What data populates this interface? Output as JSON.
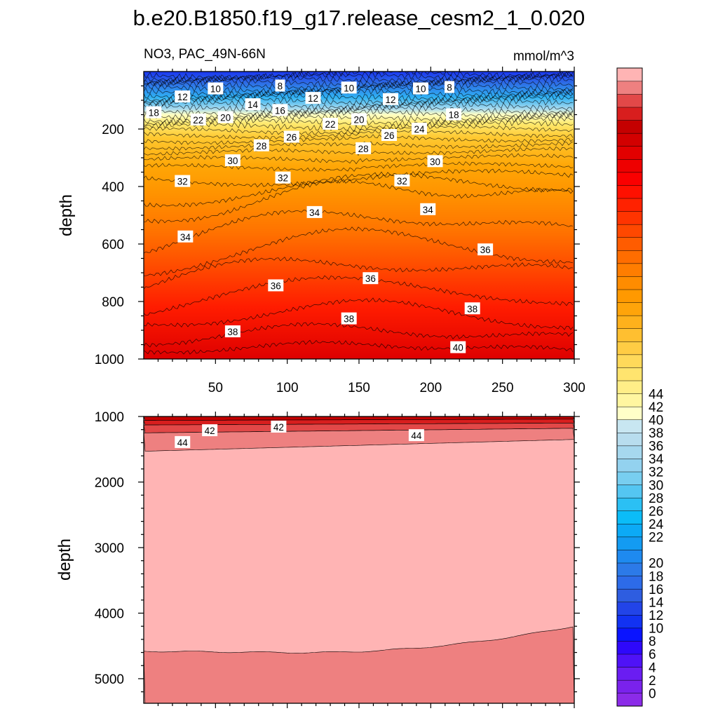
{
  "figure": {
    "title": "b.e20.B1850.f19_g17.release_cesm2_1_0.020",
    "left_subtitle": "NO3, PAC_49N-66N",
    "right_subtitle": "mmol/m^3"
  },
  "chart_data": [
    {
      "type": "contour",
      "panel": "upper",
      "x_ticks": [
        50,
        100,
        150,
        200,
        250,
        300
      ],
      "xlim": [
        0,
        300
      ],
      "ylabel": "depth",
      "y_ticks": [
        200,
        400,
        600,
        800,
        1000
      ],
      "ylim": [
        0,
        1000
      ],
      "y_reversed": true,
      "contour_interval": 2,
      "contour_labels": [
        {
          "x": 27,
          "y": 88,
          "v": "12"
        },
        {
          "x": 50,
          "y": 60,
          "v": "10"
        },
        {
          "x": 95,
          "y": 50,
          "v": "8"
        },
        {
          "x": 118,
          "y": 93,
          "v": "12"
        },
        {
          "x": 143,
          "y": 57,
          "v": "10"
        },
        {
          "x": 172,
          "y": 97,
          "v": "12"
        },
        {
          "x": 193,
          "y": 60,
          "v": "10"
        },
        {
          "x": 213,
          "y": 55,
          "v": "8"
        },
        {
          "x": 7,
          "y": 143,
          "v": "18"
        },
        {
          "x": 38,
          "y": 168,
          "v": "22"
        },
        {
          "x": 57,
          "y": 160,
          "v": "20"
        },
        {
          "x": 76,
          "y": 115,
          "v": "14"
        },
        {
          "x": 95,
          "y": 135,
          "v": "16"
        },
        {
          "x": 130,
          "y": 183,
          "v": "22"
        },
        {
          "x": 150,
          "y": 167,
          "v": "20"
        },
        {
          "x": 216,
          "y": 150,
          "v": "18"
        },
        {
          "x": 192,
          "y": 200,
          "v": "24"
        },
        {
          "x": 171,
          "y": 222,
          "v": "26"
        },
        {
          "x": 103,
          "y": 228,
          "v": "26"
        },
        {
          "x": 82,
          "y": 258,
          "v": "28"
        },
        {
          "x": 153,
          "y": 268,
          "v": "28"
        },
        {
          "x": 62,
          "y": 310,
          "v": "30"
        },
        {
          "x": 203,
          "y": 313,
          "v": "30"
        },
        {
          "x": 27,
          "y": 382,
          "v": "32"
        },
        {
          "x": 97,
          "y": 370,
          "v": "32"
        },
        {
          "x": 180,
          "y": 380,
          "v": "32"
        },
        {
          "x": 119,
          "y": 490,
          "v": "34"
        },
        {
          "x": 198,
          "y": 480,
          "v": "34"
        },
        {
          "x": 29,
          "y": 575,
          "v": "34"
        },
        {
          "x": 238,
          "y": 620,
          "v": "36"
        },
        {
          "x": 92,
          "y": 745,
          "v": "36"
        },
        {
          "x": 158,
          "y": 720,
          "v": "36"
        },
        {
          "x": 229,
          "y": 825,
          "v": "38"
        },
        {
          "x": 143,
          "y": 860,
          "v": "38"
        },
        {
          "x": 62,
          "y": 905,
          "v": "38"
        },
        {
          "x": 219,
          "y": 960,
          "v": "40"
        }
      ]
    },
    {
      "type": "contour",
      "panel": "lower",
      "ylabel": "depth",
      "y_ticks": [
        1000,
        2000,
        3000,
        4000,
        5000
      ],
      "ylim": [
        1000,
        5375
      ],
      "y_reversed": true,
      "contour_labels": [
        {
          "x": 27,
          "y": 1395,
          "v": "44"
        },
        {
          "x": 46,
          "y": 1215,
          "v": "42"
        },
        {
          "x": 94,
          "y": 1160,
          "v": "42"
        },
        {
          "x": 190,
          "y": 1290,
          "v": "44"
        }
      ]
    }
  ],
  "colorbar": {
    "labels": [
      "0",
      "2",
      "4",
      "6",
      "8",
      "10",
      "12",
      "14",
      "16",
      "18",
      "20",
      "22",
      "24",
      "26",
      "28",
      "30",
      "32",
      "34",
      "36",
      "38",
      "40",
      "42",
      "44"
    ],
    "colors": [
      "#8b2be8",
      "#7a22ec",
      "#6a1df2",
      "#4f12f7",
      "#2e08fb",
      "#0a14ff",
      "#1232f2",
      "#2244e8",
      "#2e5de0",
      "#2d6be8",
      "#2c7ae8",
      "#1e8af0",
      "#139bf2",
      "#0caaf6",
      "#0bbcf8",
      "#2bc0f4",
      "#54c6f2",
      "#78cef0",
      "#93d2ef",
      "#a6d8ee",
      "#b8ddee",
      "#c8e6f1",
      "#ffffc8",
      "#fff6a0",
      "#ffee88",
      "#ffe46e",
      "#ffd95a",
      "#ffcc44",
      "#ffbf30",
      "#ffb11c",
      "#ffa40a",
      "#ff9900",
      "#ff8c00",
      "#ff7d00",
      "#ff6d00",
      "#ff5c00",
      "#ff4800",
      "#ff3400",
      "#ff2200",
      "#ff1000",
      "#fa0000",
      "#ee0000",
      "#e20000",
      "#d20000",
      "#c40000",
      "#d81e1e",
      "#e24848",
      "#ee8080",
      "#ffb4b4"
    ]
  }
}
